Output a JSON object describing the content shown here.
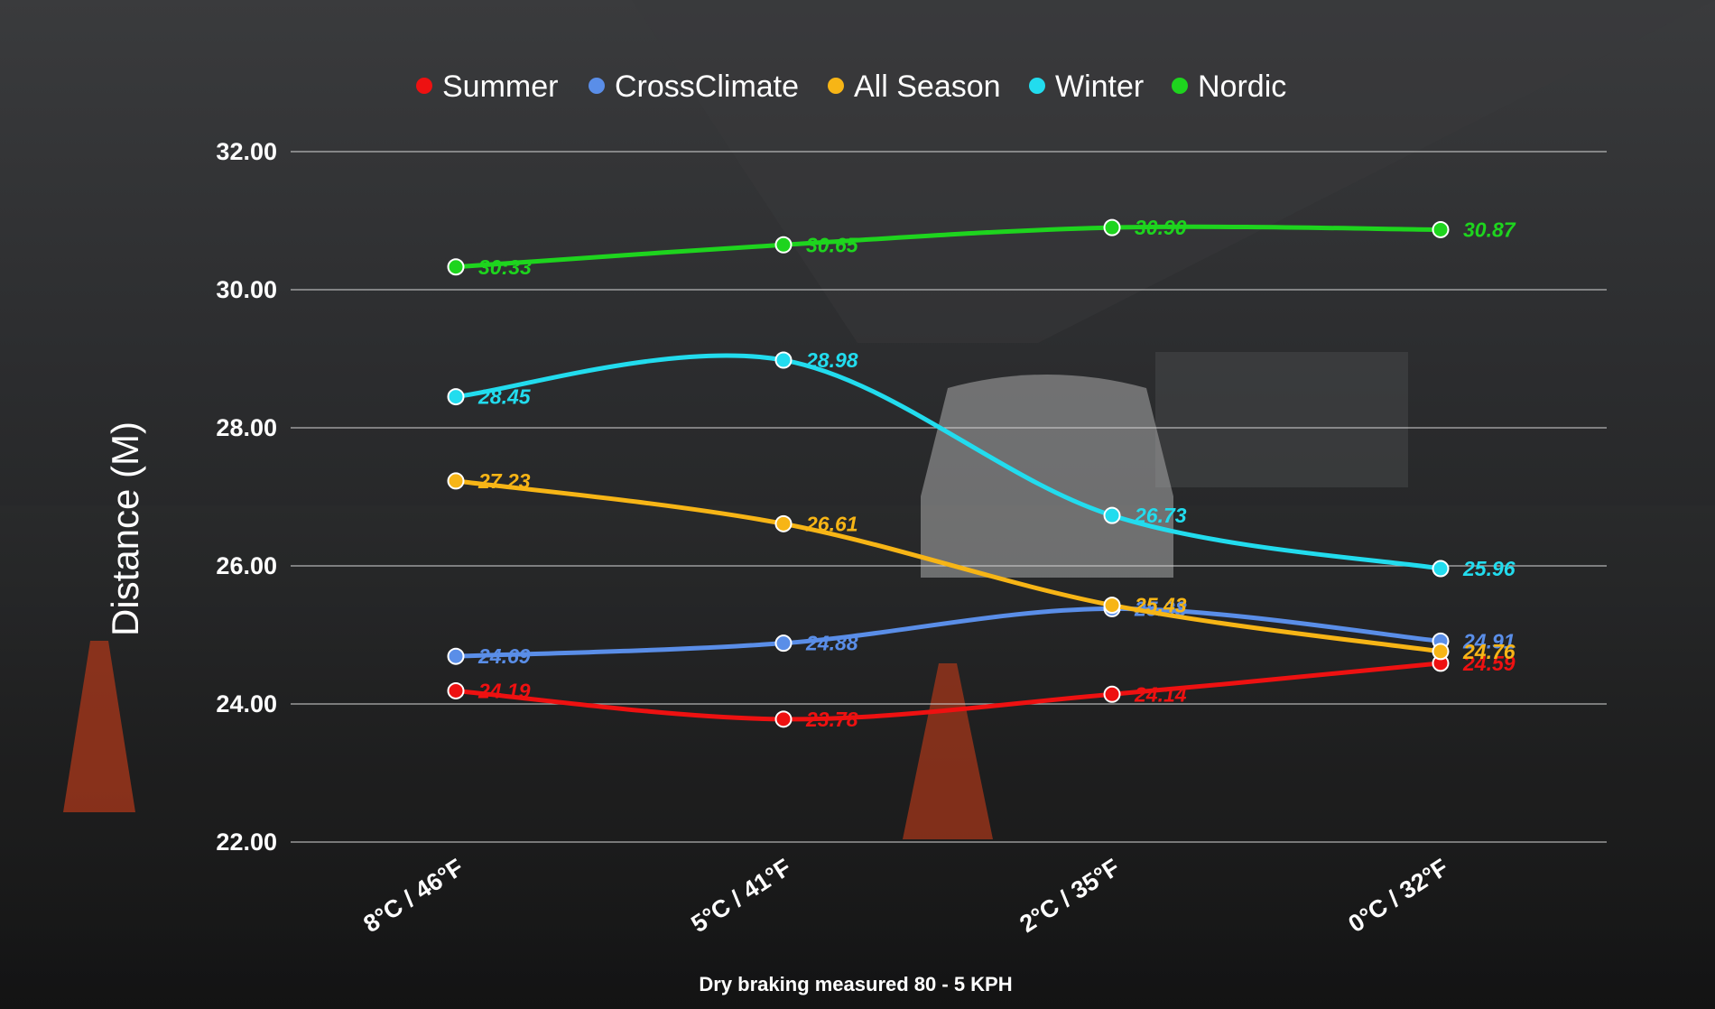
{
  "chart_data": {
    "type": "line",
    "title": "",
    "caption": "Dry braking measured 80 - 5 KPH",
    "ylabel": "Distance (M)",
    "xlabel": "",
    "ylim": [
      22,
      32
    ],
    "yticks": [
      "22.00",
      "24.00",
      "26.00",
      "28.00",
      "30.00",
      "32.00"
    ],
    "categories": [
      "8°C / 46°F",
      "5°C / 41°F",
      "2°C / 35°F",
      "0°C / 32°F"
    ],
    "grid": true,
    "legend_position": "top",
    "series": [
      {
        "name": "Summer",
        "color": "#ee1111",
        "values": [
          24.19,
          23.78,
          24.14,
          24.59
        ],
        "labels": [
          "24.19",
          "23.78",
          "24.14",
          "24.59"
        ]
      },
      {
        "name": "CrossClimate",
        "color": "#5a8ee8",
        "values": [
          24.69,
          24.88,
          25.38,
          24.91
        ],
        "labels": [
          "24.69",
          "24.88",
          "25.38",
          "24.91"
        ]
      },
      {
        "name": "All Season",
        "color": "#f7b516",
        "values": [
          27.23,
          26.61,
          25.43,
          24.76
        ],
        "labels": [
          "27.23",
          "26.61",
          "25.43",
          "24.76"
        ]
      },
      {
        "name": "Winter",
        "color": "#22dcee",
        "values": [
          28.45,
          28.98,
          26.73,
          25.96
        ],
        "labels": [
          "28.45",
          "28.98",
          "26.73",
          "25.96"
        ]
      },
      {
        "name": "Nordic",
        "color": "#1ed41e",
        "values": [
          30.33,
          30.65,
          30.9,
          30.87
        ],
        "labels": [
          "30:33",
          "30.65",
          "30.90",
          "30.87"
        ]
      }
    ]
  }
}
